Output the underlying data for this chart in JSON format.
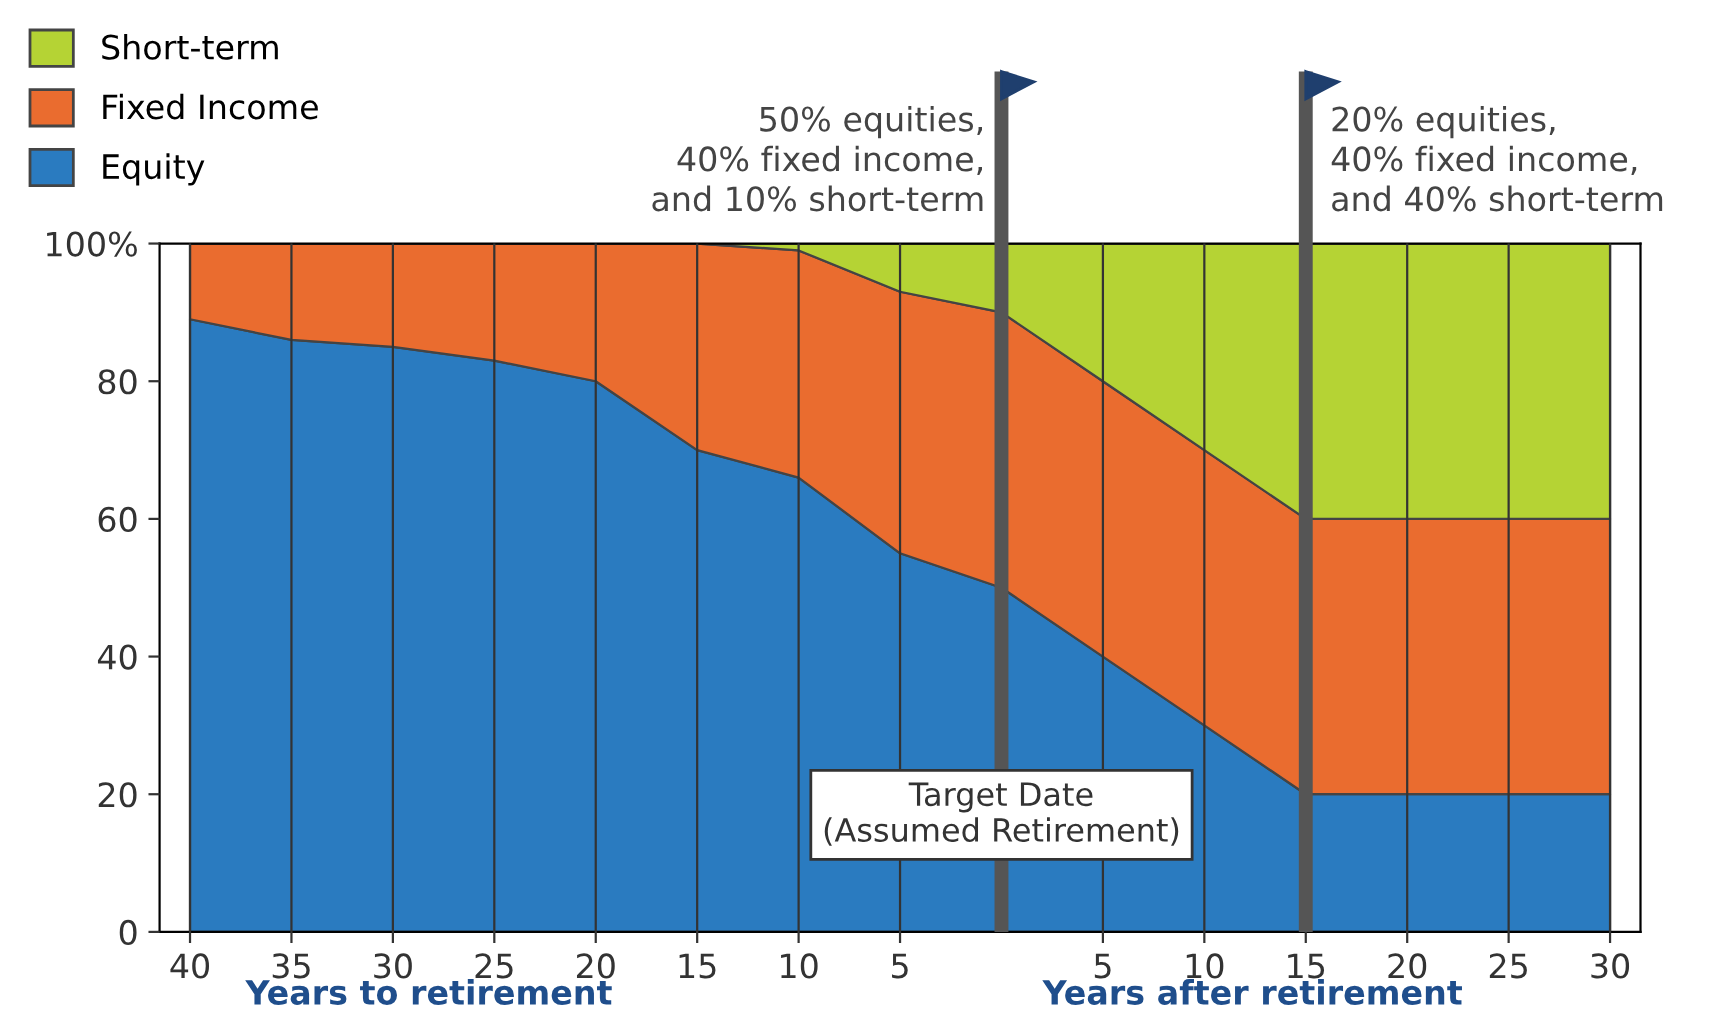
{
  "chart_data": {
    "type": "area",
    "stacked": true,
    "x": [
      -40,
      -35,
      -30,
      -25,
      -20,
      -15,
      -10,
      -5,
      0,
      5,
      10,
      15,
      20,
      25,
      30
    ],
    "series": [
      {
        "name": "Equity",
        "color": "#2a7bc0",
        "values": [
          89,
          86,
          85,
          83,
          80,
          70,
          66,
          55,
          50,
          40,
          30,
          20,
          20,
          20,
          20
        ]
      },
      {
        "name": "Fixed Income",
        "color": "#ea6c2f",
        "values": [
          11,
          14,
          15,
          17,
          20,
          30,
          33,
          38,
          40,
          40,
          40,
          40,
          40,
          40,
          40
        ]
      },
      {
        "name": "Short-term",
        "color": "#b5d334",
        "values": [
          0,
          0,
          0,
          0,
          0,
          0,
          1,
          7,
          10,
          20,
          30,
          40,
          40,
          40,
          40
        ]
      }
    ],
    "xlim": [
      -41.5,
      31.5
    ],
    "xticks": [
      {
        "value": -40,
        "label": "40"
      },
      {
        "value": -35,
        "label": "35"
      },
      {
        "value": -30,
        "label": "30"
      },
      {
        "value": -25,
        "label": "25"
      },
      {
        "value": -20,
        "label": "20"
      },
      {
        "value": -15,
        "label": "15"
      },
      {
        "value": -10,
        "label": "10"
      },
      {
        "value": -5,
        "label": "5"
      },
      5,
      10,
      15,
      20,
      25,
      30
    ],
    "ylim": [
      0,
      100
    ],
    "yticks": [
      0,
      20,
      40,
      60,
      80,
      {
        "value": 100,
        "label": "100%"
      }
    ],
    "grid": "x",
    "legend": "top left",
    "ref_lines": [
      {
        "axis": "x",
        "value": 0,
        "label": "50% equities,\n40% fixed income,\nand 10% short-term",
        "color": "#555555"
      },
      {
        "axis": "x",
        "value": 15,
        "label": "20% equities,\n40% fixed income,\nand 40% short-term",
        "color": "#555555"
      }
    ],
    "annotations": [
      {
        "text": "Target Date\n(Assumed Retirement)",
        "x": 0,
        "y": 17
      },
      "Years to retirement",
      "Years after retirement"
    ]
  }
}
